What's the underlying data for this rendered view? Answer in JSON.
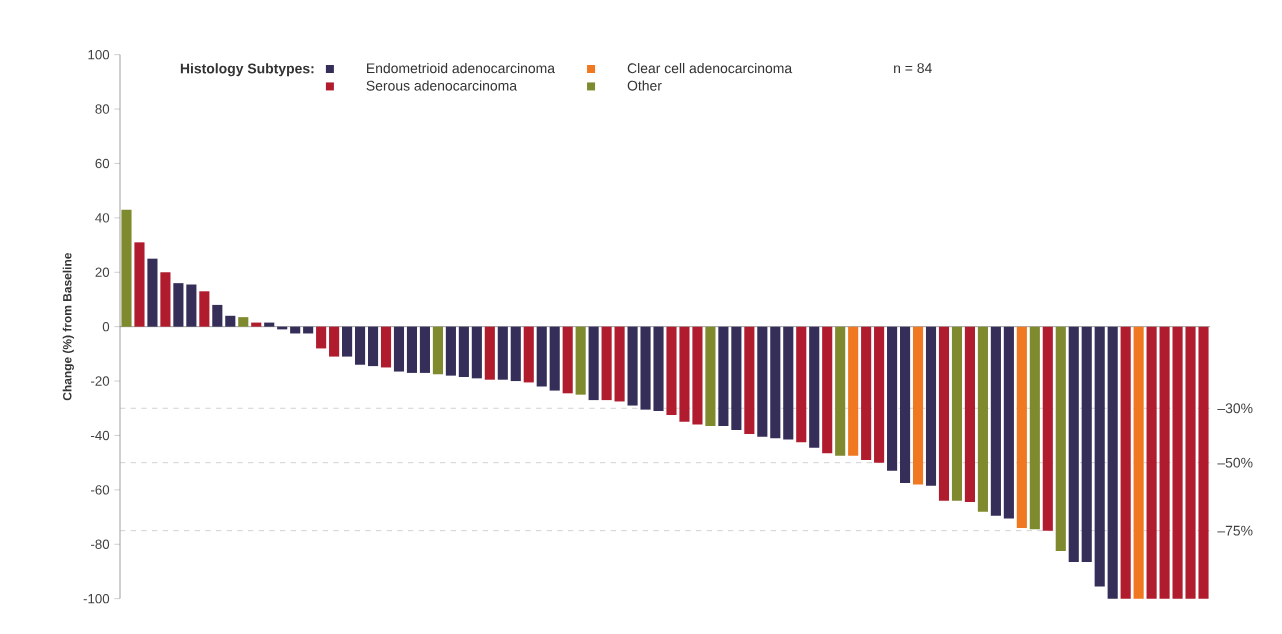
{
  "chart_data": {
    "type": "bar",
    "ylabel": "Change (%) from Baseline",
    "legend_title": "Histology Subtypes:",
    "annotations": [
      "n = 84"
    ],
    "categories": [
      null,
      null,
      null,
      null,
      null,
      null,
      null,
      null,
      null,
      null,
      null,
      null,
      null,
      null,
      null,
      null,
      null,
      null,
      null,
      null,
      null,
      null,
      null,
      null,
      null,
      null,
      null,
      null,
      null,
      null,
      null,
      null,
      null,
      null,
      null,
      null,
      null,
      null,
      null,
      null,
      null,
      null,
      null,
      null,
      null,
      null,
      null,
      null,
      null,
      null,
      null,
      null,
      null,
      null,
      null,
      null,
      null,
      null,
      null,
      null,
      null,
      null,
      null,
      null,
      null,
      null,
      null,
      null,
      null,
      null,
      null,
      null,
      null,
      null,
      null,
      null,
      null,
      null,
      null,
      null,
      null,
      null,
      null,
      null
    ],
    "series": [
      {
        "name": "Endometrioid adenocarcinoma",
        "color": "#342e58",
        "values": [
          null,
          null,
          25,
          null,
          16,
          15.5,
          null,
          8,
          4,
          null,
          null,
          1.5,
          -1,
          -2.5,
          -2.5,
          null,
          null,
          -11,
          -14,
          -14.5,
          null,
          -16.5,
          -17,
          -17,
          null,
          -18,
          -18.5,
          -19,
          null,
          -19.5,
          -20,
          null,
          -22,
          -23.5,
          null,
          null,
          -27,
          null,
          null,
          -29,
          -30.5,
          -31,
          null,
          null,
          null,
          null,
          -36.5,
          -38,
          null,
          -40.5,
          -41,
          -41.5,
          null,
          -44.5,
          null,
          null,
          null,
          null,
          null,
          -53,
          -57.5,
          null,
          -58.5,
          null,
          null,
          null,
          null,
          -69.5,
          -70.5,
          null,
          null,
          null,
          null,
          -86.5,
          -86.5,
          -95.5,
          -100,
          null,
          null,
          null,
          null,
          null,
          null,
          null
        ]
      },
      {
        "name": "Clear cell adenocarcinoma",
        "color": "#f07820",
        "values": [
          null,
          null,
          null,
          null,
          null,
          null,
          null,
          null,
          null,
          null,
          null,
          null,
          null,
          null,
          null,
          null,
          null,
          null,
          null,
          null,
          null,
          null,
          null,
          null,
          null,
          null,
          null,
          null,
          null,
          null,
          null,
          null,
          null,
          null,
          null,
          null,
          null,
          null,
          null,
          null,
          null,
          null,
          null,
          null,
          null,
          null,
          null,
          null,
          null,
          null,
          null,
          null,
          null,
          null,
          null,
          null,
          -47.5,
          null,
          null,
          null,
          null,
          -58,
          null,
          null,
          null,
          null,
          null,
          null,
          null,
          -74,
          null,
          null,
          null,
          null,
          null,
          null,
          null,
          null,
          -100,
          null,
          null,
          null,
          null,
          null
        ]
      },
      {
        "name": "Serous adenocarcinoma",
        "color": "#b01c2e",
        "values": [
          null,
          31,
          null,
          20,
          null,
          null,
          13,
          null,
          null,
          null,
          1.5,
          null,
          null,
          null,
          null,
          -8,
          -11,
          null,
          null,
          null,
          -15,
          null,
          null,
          null,
          null,
          null,
          null,
          null,
          -19.5,
          null,
          null,
          -20.5,
          null,
          null,
          -24.5,
          null,
          null,
          -27,
          -27.5,
          null,
          null,
          null,
          -32.5,
          -35,
          -36,
          null,
          null,
          null,
          -39.5,
          null,
          null,
          null,
          -42.5,
          null,
          -46.5,
          null,
          null,
          -49,
          -50,
          null,
          null,
          null,
          null,
          -64,
          null,
          -64.5,
          null,
          null,
          null,
          null,
          null,
          -75,
          null,
          null,
          null,
          null,
          null,
          -100,
          null,
          -100,
          -100,
          -100,
          -100,
          -100
        ]
      },
      {
        "name": "Other",
        "color": "#7f8a2e",
        "values": [
          43,
          null,
          null,
          null,
          null,
          null,
          null,
          null,
          null,
          3.5,
          null,
          null,
          null,
          null,
          null,
          null,
          null,
          null,
          null,
          null,
          null,
          null,
          null,
          null,
          -17.5,
          null,
          null,
          null,
          null,
          null,
          null,
          null,
          null,
          null,
          null,
          -25,
          null,
          null,
          null,
          null,
          null,
          null,
          null,
          null,
          null,
          -36.5,
          null,
          null,
          null,
          null,
          null,
          null,
          null,
          null,
          null,
          -47.5,
          null,
          null,
          null,
          null,
          null,
          null,
          null,
          null,
          -64,
          null,
          -68,
          null,
          null,
          null,
          -74.5,
          null,
          -82.5,
          null,
          null,
          null,
          null,
          null,
          null,
          null,
          null,
          null,
          null,
          null
        ]
      }
    ],
    "ylim": [
      -100,
      100
    ],
    "yticks": [
      -100,
      -80,
      -60,
      -40,
      -20,
      0,
      20,
      40,
      60,
      80,
      100
    ],
    "ref_lines": [
      {
        "axis": "y",
        "value": -30,
        "label": "–30%",
        "color": "#aaaaaa",
        "line_style": "dashed"
      },
      {
        "axis": "y",
        "value": -50,
        "label": "–50%",
        "color": "#aaaaaa",
        "line_style": "dashed"
      },
      {
        "axis": "y",
        "value": -75,
        "label": "–75%",
        "color": "#aaaaaa",
        "line_style": "dashed"
      }
    ],
    "legend": "top left"
  }
}
